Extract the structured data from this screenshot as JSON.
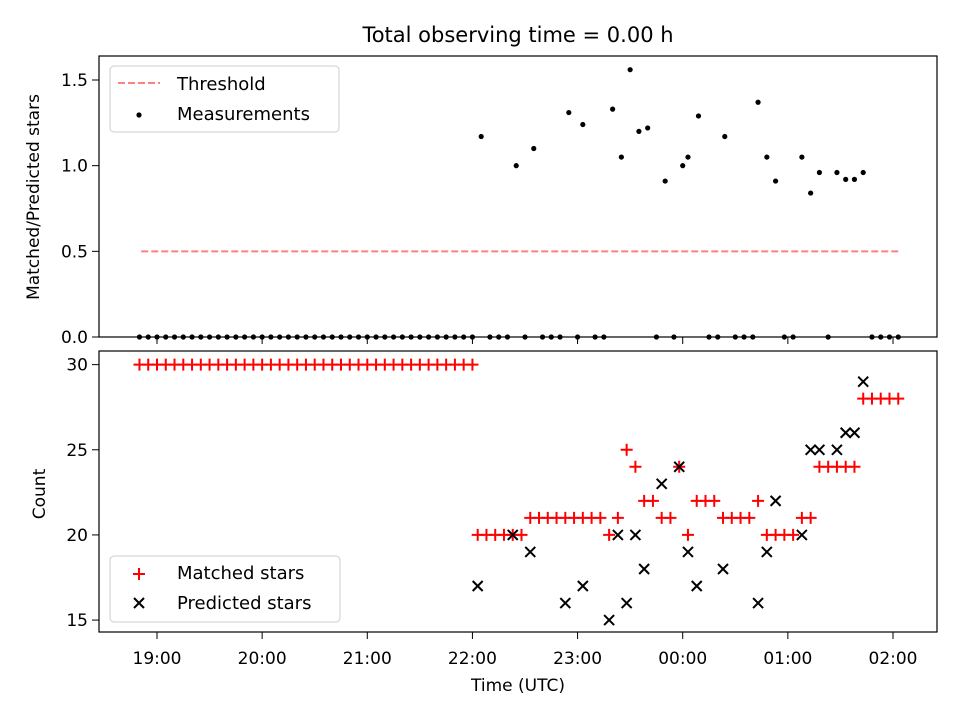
{
  "title": "Total observing time = 0.00 h",
  "chart_data": [
    {
      "type": "scatter",
      "ylabel": "Matched/Predicted stars",
      "ylim": [
        0,
        1.64
      ],
      "yticks": [
        0.0,
        0.5,
        1.0,
        1.5
      ],
      "ytick_labels": [
        "0.0",
        "0.5",
        "1.0",
        "1.5"
      ],
      "legend": {
        "placement": "top-left",
        "threshold_label": "Threshold",
        "measurements_label": "Measurements"
      },
      "threshold": {
        "value": 0.5,
        "x_start": "18:51",
        "x_end": "02:04",
        "color": "#ff8080"
      },
      "measurements": [
        {
          "x": "18:50",
          "y": 0
        },
        {
          "x": "18:55",
          "y": 0
        },
        {
          "x": "19:00",
          "y": 0
        },
        {
          "x": "19:05",
          "y": 0
        },
        {
          "x": "19:10",
          "y": 0
        },
        {
          "x": "19:15",
          "y": 0
        },
        {
          "x": "19:20",
          "y": 0
        },
        {
          "x": "19:25",
          "y": 0
        },
        {
          "x": "19:30",
          "y": 0
        },
        {
          "x": "19:35",
          "y": 0
        },
        {
          "x": "19:40",
          "y": 0
        },
        {
          "x": "19:45",
          "y": 0
        },
        {
          "x": "19:50",
          "y": 0
        },
        {
          "x": "19:55",
          "y": 0
        },
        {
          "x": "20:00",
          "y": 0
        },
        {
          "x": "20:05",
          "y": 0
        },
        {
          "x": "20:10",
          "y": 0
        },
        {
          "x": "20:15",
          "y": 0
        },
        {
          "x": "20:20",
          "y": 0
        },
        {
          "x": "20:25",
          "y": 0
        },
        {
          "x": "20:30",
          "y": 0
        },
        {
          "x": "20:35",
          "y": 0
        },
        {
          "x": "20:40",
          "y": 0
        },
        {
          "x": "20:45",
          "y": 0
        },
        {
          "x": "20:50",
          "y": 0
        },
        {
          "x": "20:55",
          "y": 0
        },
        {
          "x": "21:00",
          "y": 0
        },
        {
          "x": "21:05",
          "y": 0
        },
        {
          "x": "21:10",
          "y": 0
        },
        {
          "x": "21:15",
          "y": 0
        },
        {
          "x": "21:20",
          "y": 0
        },
        {
          "x": "21:25",
          "y": 0
        },
        {
          "x": "21:30",
          "y": 0
        },
        {
          "x": "21:35",
          "y": 0
        },
        {
          "x": "21:40",
          "y": 0
        },
        {
          "x": "21:45",
          "y": 0
        },
        {
          "x": "21:50",
          "y": 0
        },
        {
          "x": "21:55",
          "y": 0
        },
        {
          "x": "22:00",
          "y": 0
        },
        {
          "x": "22:05",
          "y": 1.17
        },
        {
          "x": "22:10",
          "y": 0
        },
        {
          "x": "22:15",
          "y": 0
        },
        {
          "x": "22:20",
          "y": 0
        },
        {
          "x": "22:25",
          "y": 1.0
        },
        {
          "x": "22:30",
          "y": 0
        },
        {
          "x": "22:35",
          "y": 1.1
        },
        {
          "x": "22:40",
          "y": 0
        },
        {
          "x": "22:45",
          "y": 0
        },
        {
          "x": "22:50",
          "y": 0
        },
        {
          "x": "22:55",
          "y": 1.31
        },
        {
          "x": "23:00",
          "y": 0
        },
        {
          "x": "23:03",
          "y": 1.24
        },
        {
          "x": "23:10",
          "y": 0
        },
        {
          "x": "23:15",
          "y": 0
        },
        {
          "x": "23:20",
          "y": 1.33
        },
        {
          "x": "23:25",
          "y": 1.05
        },
        {
          "x": "23:30",
          "y": 1.56
        },
        {
          "x": "23:35",
          "y": 1.2
        },
        {
          "x": "23:40",
          "y": 1.22
        },
        {
          "x": "23:45",
          "y": 0
        },
        {
          "x": "23:50",
          "y": 0.91
        },
        {
          "x": "23:55",
          "y": 0
        },
        {
          "x": "00:00",
          "y": 1.0
        },
        {
          "x": "00:03",
          "y": 1.05
        },
        {
          "x": "00:09",
          "y": 1.29
        },
        {
          "x": "00:15",
          "y": 0
        },
        {
          "x": "00:20",
          "y": 0
        },
        {
          "x": "00:24",
          "y": 1.17
        },
        {
          "x": "00:30",
          "y": 0
        },
        {
          "x": "00:35",
          "y": 0
        },
        {
          "x": "00:40",
          "y": 0
        },
        {
          "x": "00:43",
          "y": 1.37
        },
        {
          "x": "00:48",
          "y": 1.05
        },
        {
          "x": "00:53",
          "y": 0.91
        },
        {
          "x": "00:58",
          "y": 0
        },
        {
          "x": "01:03",
          "y": 0
        },
        {
          "x": "01:08",
          "y": 1.05
        },
        {
          "x": "01:13",
          "y": 0.84
        },
        {
          "x": "01:18",
          "y": 0.96
        },
        {
          "x": "01:23",
          "y": 0
        },
        {
          "x": "01:28",
          "y": 0.96
        },
        {
          "x": "01:33",
          "y": 0.92
        },
        {
          "x": "01:38",
          "y": 0.92
        },
        {
          "x": "01:43",
          "y": 0.96
        },
        {
          "x": "01:48",
          "y": 0
        },
        {
          "x": "01:53",
          "y": 0
        },
        {
          "x": "01:58",
          "y": 0
        },
        {
          "x": "02:03",
          "y": 0
        }
      ]
    },
    {
      "type": "scatter",
      "xlabel": "Time (UTC)",
      "ylabel": "Count",
      "ylim": [
        14.3,
        30.8
      ],
      "yticks": [
        15,
        20,
        25,
        30
      ],
      "ytick_labels": [
        "15",
        "20",
        "25",
        "30"
      ],
      "xticks": [
        "19:00",
        "20:00",
        "21:00",
        "22:00",
        "23:00",
        "00:00",
        "01:00",
        "02:00"
      ],
      "legend": {
        "placement": "bottom-left",
        "matched_label": "Matched stars",
        "predicted_label": "Predicted stars"
      },
      "colors": {
        "matched": "#ff0000",
        "predicted": "#000000"
      },
      "matched": [
        {
          "x": "18:50",
          "y": 30
        },
        {
          "x": "18:55",
          "y": 30
        },
        {
          "x": "19:00",
          "y": 30
        },
        {
          "x": "19:05",
          "y": 30
        },
        {
          "x": "19:10",
          "y": 30
        },
        {
          "x": "19:15",
          "y": 30
        },
        {
          "x": "19:20",
          "y": 30
        },
        {
          "x": "19:25",
          "y": 30
        },
        {
          "x": "19:30",
          "y": 30
        },
        {
          "x": "19:35",
          "y": 30
        },
        {
          "x": "19:40",
          "y": 30
        },
        {
          "x": "19:45",
          "y": 30
        },
        {
          "x": "19:50",
          "y": 30
        },
        {
          "x": "19:55",
          "y": 30
        },
        {
          "x": "20:00",
          "y": 30
        },
        {
          "x": "20:05",
          "y": 30
        },
        {
          "x": "20:10",
          "y": 30
        },
        {
          "x": "20:15",
          "y": 30
        },
        {
          "x": "20:20",
          "y": 30
        },
        {
          "x": "20:25",
          "y": 30
        },
        {
          "x": "20:30",
          "y": 30
        },
        {
          "x": "20:35",
          "y": 30
        },
        {
          "x": "20:40",
          "y": 30
        },
        {
          "x": "20:45",
          "y": 30
        },
        {
          "x": "20:50",
          "y": 30
        },
        {
          "x": "20:55",
          "y": 30
        },
        {
          "x": "21:00",
          "y": 30
        },
        {
          "x": "21:05",
          "y": 30
        },
        {
          "x": "21:10",
          "y": 30
        },
        {
          "x": "21:15",
          "y": 30
        },
        {
          "x": "21:20",
          "y": 30
        },
        {
          "x": "21:25",
          "y": 30
        },
        {
          "x": "21:30",
          "y": 30
        },
        {
          "x": "21:35",
          "y": 30
        },
        {
          "x": "21:40",
          "y": 30
        },
        {
          "x": "21:45",
          "y": 30
        },
        {
          "x": "21:50",
          "y": 30
        },
        {
          "x": "21:55",
          "y": 30
        },
        {
          "x": "22:00",
          "y": 30
        },
        {
          "x": "22:03",
          "y": 20
        },
        {
          "x": "22:08",
          "y": 20
        },
        {
          "x": "22:13",
          "y": 20
        },
        {
          "x": "22:18",
          "y": 20
        },
        {
          "x": "22:23",
          "y": 20
        },
        {
          "x": "22:28",
          "y": 20
        },
        {
          "x": "22:33",
          "y": 21
        },
        {
          "x": "22:38",
          "y": 21
        },
        {
          "x": "22:43",
          "y": 21
        },
        {
          "x": "22:48",
          "y": 21
        },
        {
          "x": "22:53",
          "y": 21
        },
        {
          "x": "22:58",
          "y": 21
        },
        {
          "x": "23:03",
          "y": 21
        },
        {
          "x": "23:08",
          "y": 21
        },
        {
          "x": "23:13",
          "y": 21
        },
        {
          "x": "23:18",
          "y": 20
        },
        {
          "x": "23:23",
          "y": 21
        },
        {
          "x": "23:28",
          "y": 25
        },
        {
          "x": "23:33",
          "y": 24
        },
        {
          "x": "23:38",
          "y": 22
        },
        {
          "x": "23:43",
          "y": 22
        },
        {
          "x": "23:48",
          "y": 21
        },
        {
          "x": "23:53",
          "y": 21
        },
        {
          "x": "23:58",
          "y": 24
        },
        {
          "x": "00:03",
          "y": 20
        },
        {
          "x": "00:08",
          "y": 22
        },
        {
          "x": "00:13",
          "y": 22
        },
        {
          "x": "00:18",
          "y": 22
        },
        {
          "x": "00:23",
          "y": 21
        },
        {
          "x": "00:28",
          "y": 21
        },
        {
          "x": "00:33",
          "y": 21
        },
        {
          "x": "00:38",
          "y": 21
        },
        {
          "x": "00:43",
          "y": 22
        },
        {
          "x": "00:48",
          "y": 20
        },
        {
          "x": "00:53",
          "y": 20
        },
        {
          "x": "00:58",
          "y": 20
        },
        {
          "x": "01:03",
          "y": 20
        },
        {
          "x": "01:08",
          "y": 21
        },
        {
          "x": "01:13",
          "y": 21
        },
        {
          "x": "01:18",
          "y": 24
        },
        {
          "x": "01:23",
          "y": 24
        },
        {
          "x": "01:28",
          "y": 24
        },
        {
          "x": "01:33",
          "y": 24
        },
        {
          "x": "01:38",
          "y": 24
        },
        {
          "x": "01:43",
          "y": 28
        },
        {
          "x": "01:48",
          "y": 28
        },
        {
          "x": "01:53",
          "y": 28
        },
        {
          "x": "01:58",
          "y": 28
        },
        {
          "x": "02:03",
          "y": 28
        }
      ],
      "predicted": [
        {
          "x": "22:03",
          "y": 17
        },
        {
          "x": "22:23",
          "y": 20
        },
        {
          "x": "22:33",
          "y": 19
        },
        {
          "x": "22:53",
          "y": 16
        },
        {
          "x": "23:03",
          "y": 17
        },
        {
          "x": "23:18",
          "y": 15
        },
        {
          "x": "23:23",
          "y": 20
        },
        {
          "x": "23:28",
          "y": 16
        },
        {
          "x": "23:33",
          "y": 20
        },
        {
          "x": "23:38",
          "y": 18
        },
        {
          "x": "23:48",
          "y": 23
        },
        {
          "x": "23:58",
          "y": 24
        },
        {
          "x": "00:03",
          "y": 19
        },
        {
          "x": "00:08",
          "y": 17
        },
        {
          "x": "00:23",
          "y": 18
        },
        {
          "x": "00:43",
          "y": 16
        },
        {
          "x": "00:48",
          "y": 19
        },
        {
          "x": "00:53",
          "y": 22
        },
        {
          "x": "01:08",
          "y": 20
        },
        {
          "x": "01:13",
          "y": 25
        },
        {
          "x": "01:18",
          "y": 25
        },
        {
          "x": "01:28",
          "y": 25
        },
        {
          "x": "01:33",
          "y": 26
        },
        {
          "x": "01:38",
          "y": 26
        },
        {
          "x": "01:43",
          "y": 29
        }
      ]
    }
  ]
}
